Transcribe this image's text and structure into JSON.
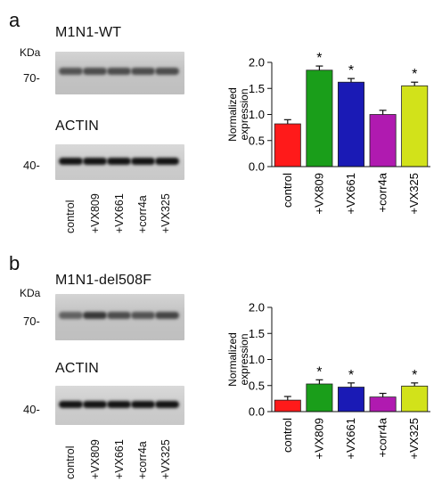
{
  "panels": [
    {
      "letter": "a",
      "gel_title": "M1N1-WT",
      "kda_label": "KDa",
      "top_marker": "70-",
      "actin_label": "ACTIN",
      "actin_marker": "40-",
      "lanes": [
        "control",
        "+VX809",
        "+VX661",
        "+corr4a",
        "+VX325"
      ],
      "band_intensity": [
        0.55,
        0.6,
        0.6,
        0.6,
        0.6
      ],
      "actin_intensity": [
        1,
        1,
        1,
        1,
        1
      ]
    },
    {
      "letter": "b",
      "gel_title": "M1N1-del508F",
      "kda_label": "KDa",
      "top_marker": "70-",
      "actin_label": "ACTIN",
      "actin_marker": "40-",
      "lanes": [
        "control",
        "+VX809",
        "+VX661",
        "+corr4a",
        "+VX325"
      ],
      "band_intensity": [
        0.45,
        0.75,
        0.6,
        0.55,
        0.65
      ],
      "actin_intensity": [
        1,
        1,
        1,
        1,
        1
      ]
    }
  ],
  "colors": {
    "control": "#ff1a1a",
    "+VX809": "#1a9e1a",
    "+VX661": "#1a1ab5",
    "+corr4a": "#b01ab0",
    "+VX325": "#d2e21a"
  },
  "chart_data": [
    {
      "type": "bar",
      "categories": [
        "control",
        "+VX809",
        "+VX661",
        "+corr4a",
        "+VX325"
      ],
      "values": [
        0.82,
        1.85,
        1.62,
        1.0,
        1.55
      ],
      "errors": [
        0.08,
        0.08,
        0.07,
        0.08,
        0.07
      ],
      "significant": [
        false,
        true,
        true,
        false,
        true
      ],
      "marker": "*",
      "ylabel": "Normalized expression",
      "ylabel_lines": [
        "Normalized",
        "expression"
      ],
      "ylim": [
        0,
        2.0
      ],
      "yticks": [
        "0.0",
        "0.5",
        "1.0",
        "1.5",
        "2.0"
      ]
    },
    {
      "type": "bar",
      "categories": [
        "control",
        "+VX809",
        "+VX661",
        "+corr4a",
        "+VX325"
      ],
      "values": [
        0.22,
        0.53,
        0.47,
        0.28,
        0.49
      ],
      "errors": [
        0.07,
        0.08,
        0.08,
        0.07,
        0.06
      ],
      "significant": [
        false,
        true,
        true,
        false,
        true
      ],
      "marker": "*",
      "ylabel": "Normalized expression",
      "ylabel_lines": [
        "Normalized",
        "expression"
      ],
      "ylim": [
        0,
        2.0
      ],
      "yticks": [
        "0.0",
        "0.5",
        "1.0",
        "1.5",
        "2.0"
      ]
    }
  ]
}
